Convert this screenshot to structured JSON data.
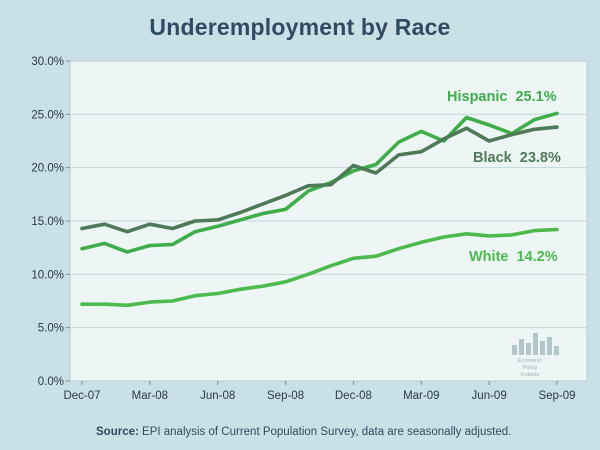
{
  "page": {
    "title": "Underemployment by Race",
    "source_label": "Source:",
    "source_text": "EPI analysis of Current Population Survey, data are seasonally adjusted.",
    "watermark": [
      "Economic",
      "Policy",
      "Institute"
    ]
  },
  "colors": {
    "background": "#c9e1e6",
    "plot_bg": "#eef5f5",
    "grid": "#c3d6d9",
    "hispanic": "#3fae4a",
    "black": "#4e7a58",
    "white": "#4cba4c",
    "title": "#2f4b63"
  },
  "chart_data": {
    "type": "line",
    "title": "Underemployment by Race",
    "xlabel": "",
    "ylabel": "",
    "ylim": [
      0,
      30
    ],
    "y_ticks": [
      "0.0%",
      "5.0%",
      "10.0%",
      "15.0%",
      "20.0%",
      "25.0%",
      "30.0%"
    ],
    "x_tick_labels": [
      "Dec-07",
      "Mar-08",
      "Jun-08",
      "Sep-08",
      "Dec-08",
      "Mar-09",
      "Jun-09",
      "Sep-09"
    ],
    "months": [
      "Dec-07",
      "Jan-08",
      "Feb-08",
      "Mar-08",
      "Apr-08",
      "May-08",
      "Jun-08",
      "Jul-08",
      "Aug-08",
      "Sep-08",
      "Oct-08",
      "Nov-08",
      "Dec-08",
      "Jan-09",
      "Feb-09",
      "Mar-09",
      "Apr-09",
      "May-09",
      "Jun-09",
      "Jul-09",
      "Aug-09",
      "Sep-09"
    ],
    "grid": true,
    "series": [
      {
        "name": "Hispanic",
        "label": "Hispanic",
        "value_label": "25.1%",
        "values": [
          12.4,
          12.9,
          12.1,
          12.7,
          12.8,
          14.0,
          14.5,
          15.1,
          15.7,
          16.1,
          17.8,
          18.6,
          19.7,
          20.3,
          22.4,
          23.4,
          22.5,
          24.7,
          24.0,
          23.2,
          24.5,
          25.1
        ]
      },
      {
        "name": "Black",
        "label": "Black",
        "value_label": "23.8%",
        "values": [
          14.3,
          14.7,
          14.0,
          14.7,
          14.3,
          15.0,
          15.1,
          15.8,
          16.6,
          17.4,
          18.3,
          18.4,
          20.2,
          19.5,
          21.2,
          21.5,
          22.7,
          23.7,
          22.5,
          23.1,
          23.6,
          23.8
        ]
      },
      {
        "name": "White",
        "label": "White",
        "value_label": "14.2%",
        "values": [
          7.2,
          7.2,
          7.1,
          7.4,
          7.5,
          8.0,
          8.2,
          8.6,
          8.9,
          9.3,
          10.0,
          10.8,
          11.5,
          11.7,
          12.4,
          13.0,
          13.5,
          13.8,
          13.6,
          13.7,
          14.1,
          14.2
        ]
      }
    ]
  }
}
